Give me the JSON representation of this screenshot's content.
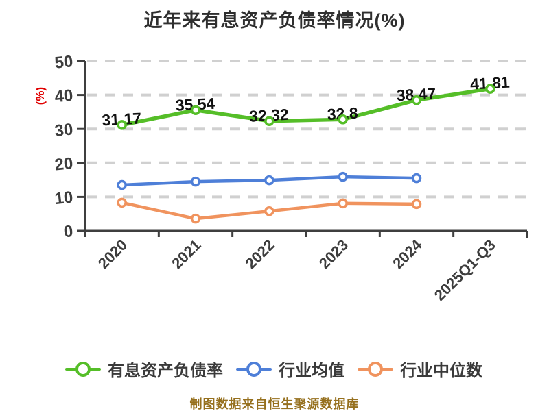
{
  "title": "近年来有息资产负债率情况(%)",
  "footer": "制图数据来自恒生聚源数据库",
  "legend": {
    "items": [
      {
        "id": "interest-bearing-debt-ratio",
        "label": "有息资产负债率",
        "color": "#55be28"
      },
      {
        "id": "industry-average",
        "label": "行业均值",
        "color": "#4e7fd8"
      },
      {
        "id": "industry-median",
        "label": "行业中位数",
        "color": "#f0935e"
      }
    ]
  },
  "colors": {
    "title_text": "#2f2f2f",
    "axis": "#3f3f3f",
    "grid": "#d0d0d0",
    "tick_text": "#3d3d3d",
    "data_label_text": "#111111",
    "y_unit_text": "#e00000",
    "footer_text": "#96701e",
    "marker_fill": "#ffffff"
  },
  "chart_data": {
    "type": "line",
    "title": "近年来有息资产负债率情况(%)",
    "ylabel": "(%)",
    "xlabel": "",
    "ylim": [
      0,
      50
    ],
    "y_ticks": [
      0,
      10,
      20,
      30,
      40,
      50
    ],
    "grid": "dashed-horizontal",
    "legend_position": "bottom",
    "categories": [
      "2020",
      "2021",
      "2022",
      "2023",
      "2024",
      "2025Q1-Q3"
    ],
    "series": [
      {
        "id": "interest-bearing-debt-ratio",
        "name": "有息资产负债率",
        "color": "#55be28",
        "values": [
          31.17,
          35.54,
          32.32,
          32.8,
          38.47,
          41.81
        ],
        "labels": [
          "31.17",
          "35.54",
          "32.32",
          "32.8",
          "38.47",
          "41.81"
        ],
        "show_labels": true
      },
      {
        "id": "industry-average",
        "name": "行业均值",
        "color": "#4e7fd8",
        "values": [
          13.5,
          14.5,
          14.9,
          15.9,
          15.5
        ],
        "show_labels": false
      },
      {
        "id": "industry-median",
        "name": "行业中位数",
        "color": "#f0935e",
        "values": [
          8.3,
          3.6,
          5.8,
          8.1,
          7.9
        ],
        "show_labels": false
      }
    ]
  }
}
